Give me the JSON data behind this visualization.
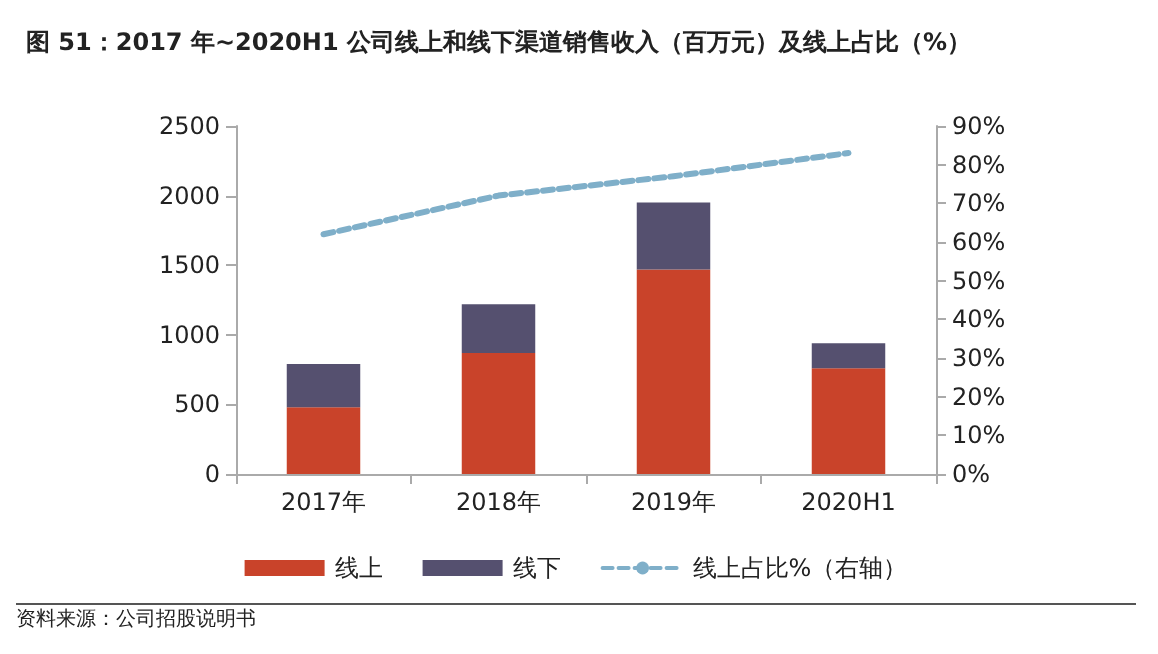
{
  "chart_data": {
    "type": "bar",
    "title": "图 51：2017 年~2020H1 公司线上和线下渠道销售收入（百万元）及线上占比（%）",
    "categories": [
      "2017年",
      "2018年",
      "2019年",
      "2020H1"
    ],
    "stacked": true,
    "series": [
      {
        "name": "线上",
        "color": "#c9432a",
        "values": [
          480,
          870,
          1470,
          760
        ]
      },
      {
        "name": "线下",
        "color": "#55506f",
        "values": [
          310,
          350,
          480,
          180
        ]
      },
      {
        "name": "线上占比%（右轴）",
        "type": "line",
        "axis": "y2",
        "color": "#7fafc9",
        "line_style": "dashed",
        "marker": "none",
        "values": [
          62,
          72,
          77,
          83
        ]
      }
    ],
    "ylim": [
      0,
      2500
    ],
    "yticks": [
      0,
      500,
      1000,
      1500,
      2000,
      2500
    ],
    "y2lim": [
      0,
      90
    ],
    "y2ticks": [
      {
        "value": 0,
        "label": "0%"
      },
      {
        "value": 10,
        "label": "10%"
      },
      {
        "value": 20,
        "label": "20%"
      },
      {
        "value": 30,
        "label": "30%"
      },
      {
        "value": 40,
        "label": "40%"
      },
      {
        "value": 50,
        "label": "50%"
      },
      {
        "value": 60,
        "label": "60%"
      },
      {
        "value": 70,
        "label": "70%"
      },
      {
        "value": 80,
        "label": "80%"
      },
      {
        "value": 90,
        "label": "90%"
      }
    ],
    "grid": false,
    "legend": "bottom",
    "annotations": [
      "资料来源：公司招股说明书"
    ]
  }
}
